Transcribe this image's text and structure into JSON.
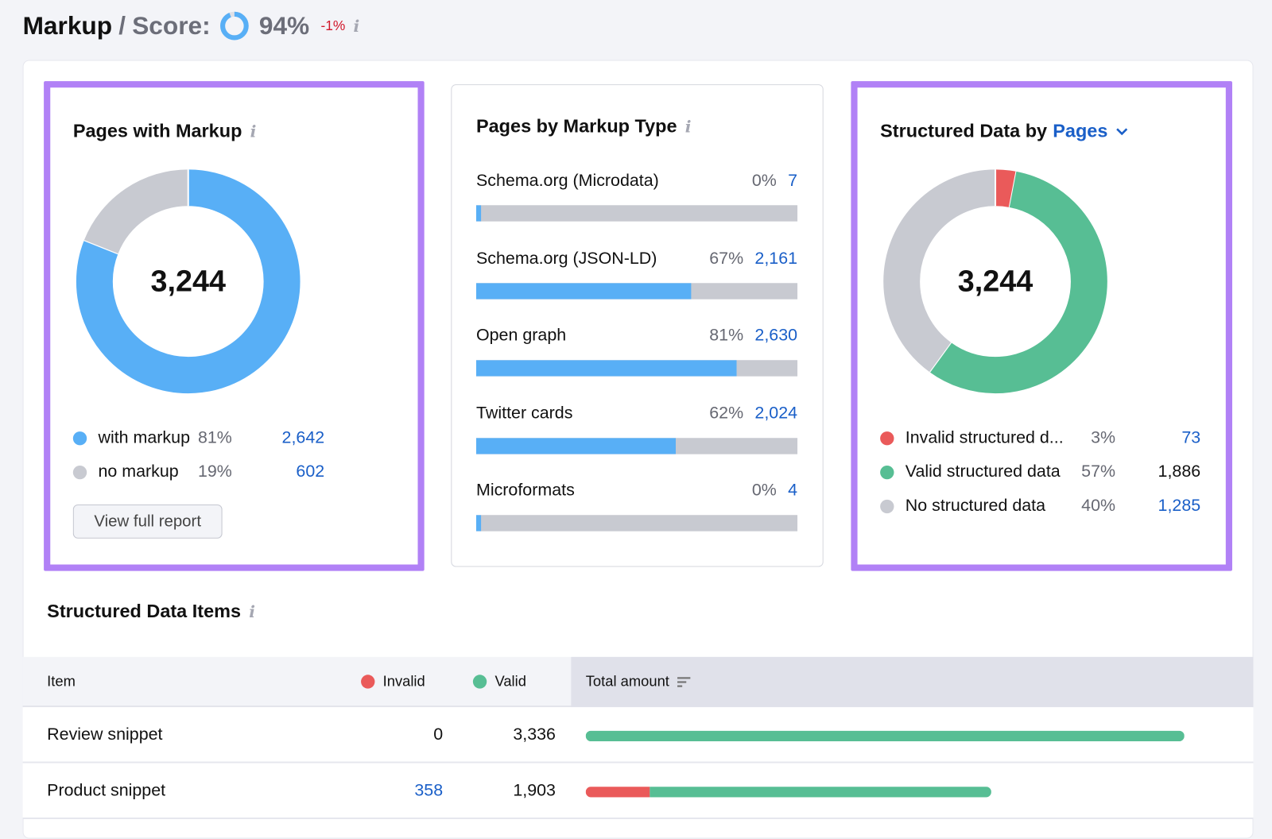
{
  "header": {
    "title": "Markup",
    "separator": "/",
    "score_label": "Score:",
    "score_value": "94%",
    "score_fraction": 0.94,
    "delta": "-1%",
    "info": "i"
  },
  "pages_with_markup": {
    "title": "Pages with Markup",
    "info": "i",
    "total": "3,244",
    "legend": [
      {
        "label": "with markup",
        "pct": "81%",
        "count": "2,642",
        "fraction": 0.81,
        "color": "#58aff6",
        "link": true
      },
      {
        "label": "no markup",
        "pct": "19%",
        "count": "602",
        "fraction": 0.19,
        "color": "#c8cad1",
        "link": true
      }
    ],
    "button": "View full report"
  },
  "pages_by_type": {
    "title": "Pages by Markup Type",
    "info": "i",
    "rows": [
      {
        "label": "Schema.org (Microdata)",
        "pct": "0%",
        "count": "7",
        "fraction": 0.0
      },
      {
        "label": "Schema.org (JSON-LD)",
        "pct": "67%",
        "count": "2,161",
        "fraction": 0.67
      },
      {
        "label": "Open graph",
        "pct": "81%",
        "count": "2,630",
        "fraction": 0.81
      },
      {
        "label": "Twitter cards",
        "pct": "62%",
        "count": "2,024",
        "fraction": 0.62
      },
      {
        "label": "Microformats",
        "pct": "0%",
        "count": "4",
        "fraction": 0.0
      }
    ]
  },
  "structured_data": {
    "title": "Structured Data by",
    "dropdown": "Pages",
    "total": "3,244",
    "legend": [
      {
        "label": "Invalid structured d...",
        "pct": "3%",
        "count": "73",
        "fraction": 0.03,
        "color": "#ea5a5a",
        "link": true
      },
      {
        "label": "Valid structured data",
        "pct": "57%",
        "count": "1,886",
        "fraction": 0.57,
        "color": "#57be94",
        "link": false
      },
      {
        "label": "No structured data",
        "pct": "40%",
        "count": "1,285",
        "fraction": 0.4,
        "color": "#c8cad1",
        "link": true
      }
    ]
  },
  "items": {
    "title": "Structured Data Items",
    "info": "i",
    "columns": {
      "item": "Item",
      "invalid": "Invalid",
      "valid": "Valid",
      "total": "Total amount"
    },
    "colors": {
      "invalid": "#ea5a5a",
      "valid": "#57be94"
    },
    "max": 3336,
    "rows": [
      {
        "item": "Review snippet",
        "invalid": "0",
        "valid": "3,336",
        "invalid_n": 0,
        "valid_n": 3336,
        "invalid_link": false
      },
      {
        "item": "Product snippet",
        "invalid": "358",
        "valid": "1,903",
        "invalid_n": 358,
        "valid_n": 1903,
        "invalid_link": true
      }
    ]
  }
}
